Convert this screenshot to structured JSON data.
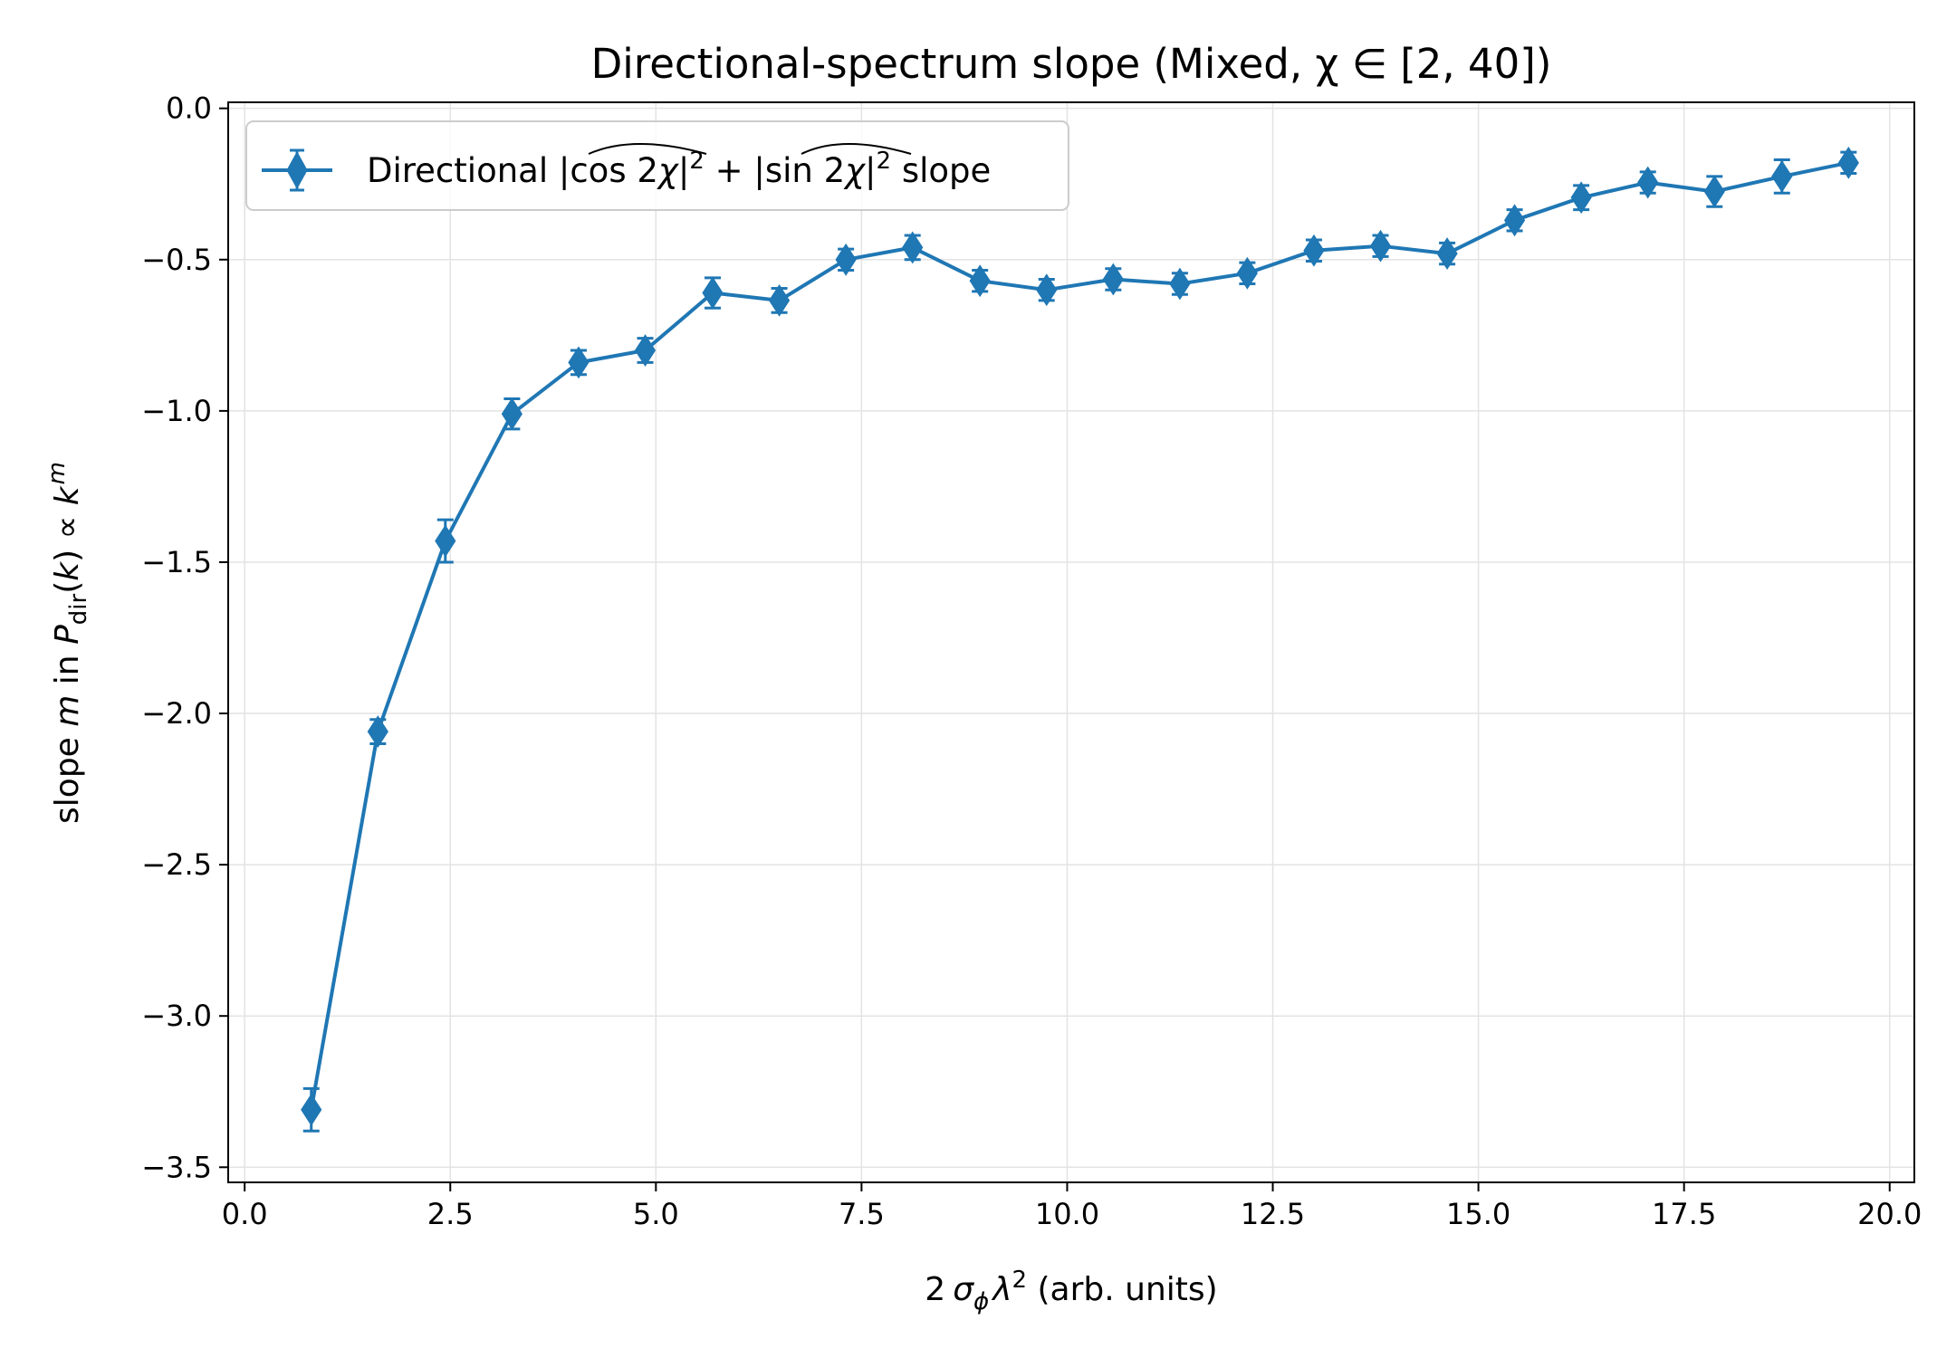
{
  "chart_data": {
    "type": "line",
    "title": "Directional-spectrum slope (Mixed, χ ∈ [2, 40])",
    "xlabel": "2 σ_ϕ λ² (arb. units)",
    "ylabel": "slope m in P_dir(k) ∝ k^m",
    "xlim": [
      -0.2,
      20.3
    ],
    "ylim": [
      -3.55,
      0.02
    ],
    "x_ticks": [
      0.0,
      2.5,
      5.0,
      7.5,
      10.0,
      12.5,
      15.0,
      17.5,
      20.0
    ],
    "x_tick_labels": [
      "0.0",
      "2.5",
      "5.0",
      "7.5",
      "10.0",
      "12.5",
      "15.0",
      "17.5",
      "20.0"
    ],
    "y_ticks": [
      0.0,
      -0.5,
      -1.0,
      -1.5,
      -2.0,
      -2.5,
      -3.0,
      -3.5
    ],
    "y_tick_labels": [
      "0.0",
      "−0.5",
      "−1.0",
      "−1.5",
      "−2.0",
      "−2.5",
      "−3.0",
      "−3.5"
    ],
    "grid": true,
    "legend_position": "upper-left",
    "series": [
      {
        "name": "Directional |cos 2χ|² + |sin 2χ|² slope",
        "color": "#1f77b4",
        "marker": "thin_diamond",
        "x": [
          0.81,
          1.62,
          2.44,
          3.25,
          4.06,
          4.87,
          5.69,
          6.5,
          7.31,
          8.12,
          8.94,
          9.75,
          10.56,
          11.37,
          12.19,
          13.0,
          13.81,
          14.62,
          15.44,
          16.25,
          17.06,
          17.87,
          18.69,
          19.5
        ],
        "y": [
          -3.31,
          -2.06,
          -1.43,
          -1.01,
          -0.84,
          -0.8,
          -0.61,
          -0.635,
          -0.5,
          -0.46,
          -0.57,
          -0.6,
          -0.565,
          -0.58,
          -0.545,
          -0.47,
          -0.455,
          -0.48,
          -0.37,
          -0.295,
          -0.245,
          -0.275,
          -0.225,
          -0.18
        ],
        "yerr": [
          0.07,
          0.04,
          0.07,
          0.05,
          0.04,
          0.04,
          0.05,
          0.04,
          0.035,
          0.04,
          0.035,
          0.035,
          0.035,
          0.035,
          0.035,
          0.035,
          0.035,
          0.035,
          0.035,
          0.04,
          0.035,
          0.05,
          0.055,
          0.035
        ]
      }
    ]
  }
}
